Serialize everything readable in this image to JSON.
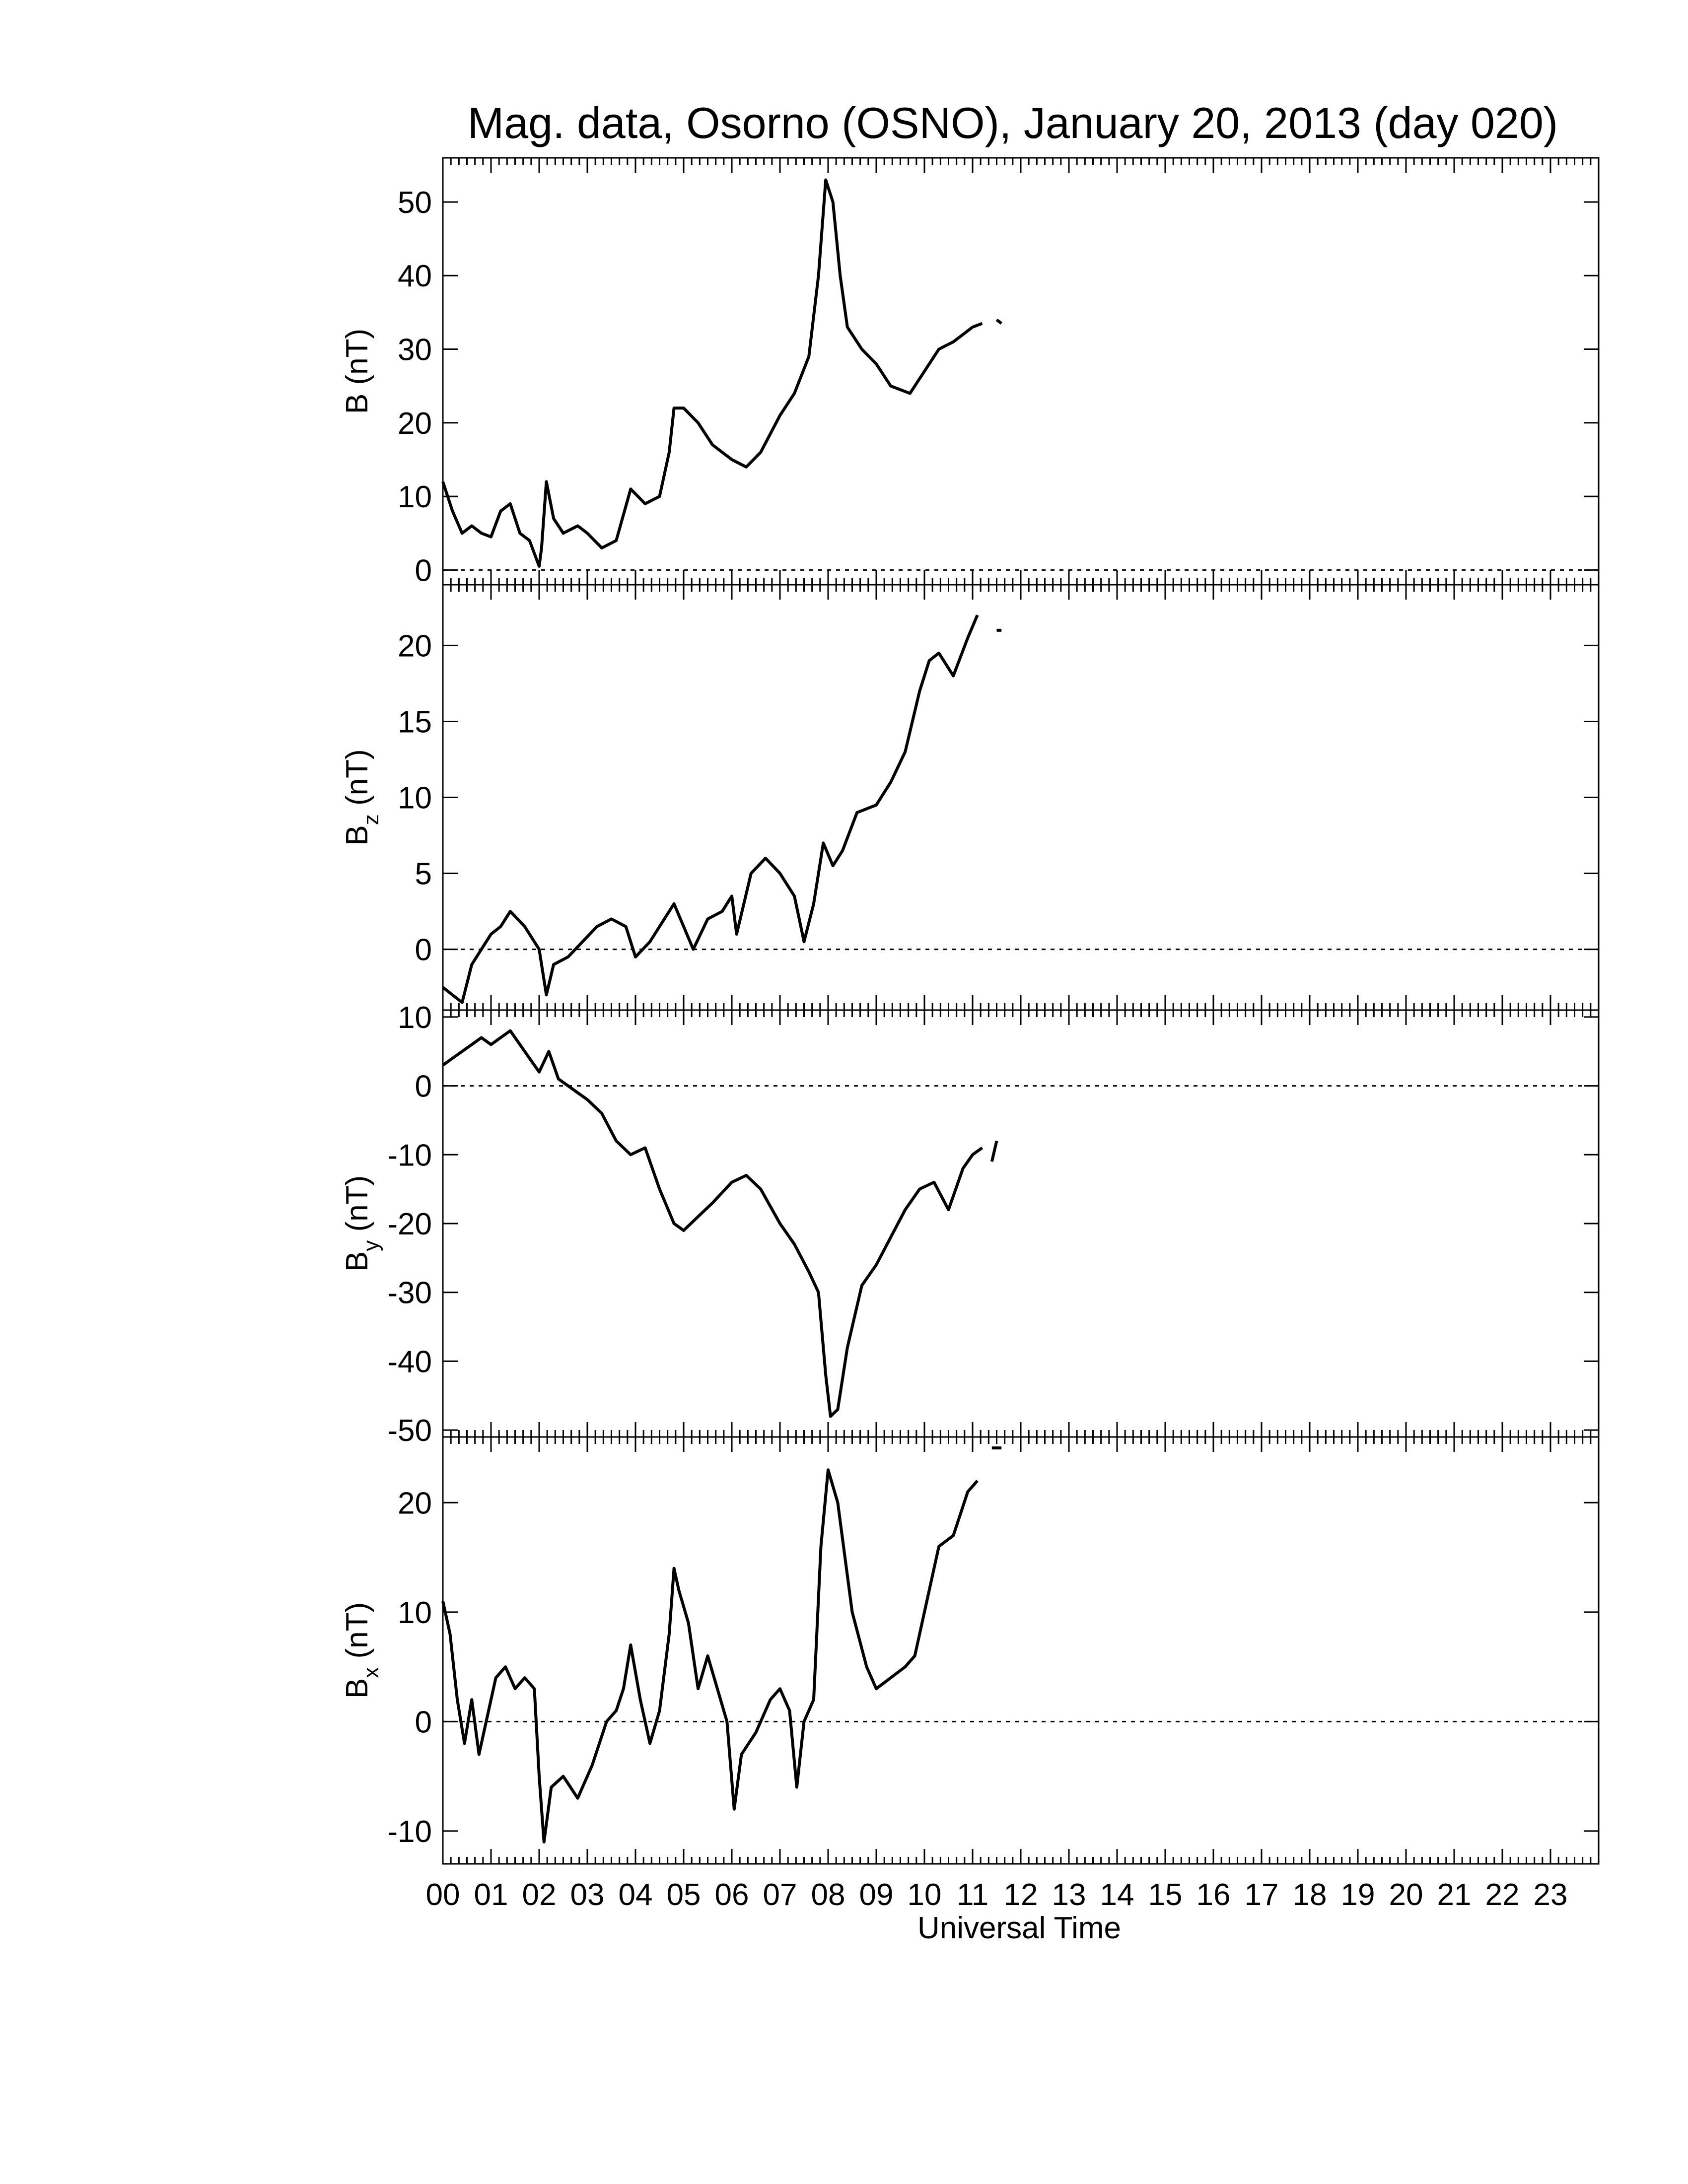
{
  "chart_data": {
    "type": "line",
    "title": "Mag. data, Osorno (OSNO), January 20, 2013 (day 020)",
    "xlabel": "Universal Time",
    "x_tick_labels": [
      "00",
      "01",
      "02",
      "03",
      "04",
      "05",
      "06",
      "07",
      "08",
      "09",
      "10",
      "11",
      "12",
      "13",
      "14",
      "15",
      "16",
      "17",
      "18",
      "19",
      "20",
      "21",
      "22",
      "23"
    ],
    "xlim": [
      0,
      24
    ],
    "panels": [
      {
        "id": "B",
        "ylabel_main": "B",
        "ylabel_sub": "",
        "ylabel_unit": " (nT)",
        "ylim": [
          -2,
          56
        ],
        "yticks": [
          0,
          10,
          20,
          30,
          40,
          50
        ],
        "ytick_labels": [
          "0",
          "10",
          "20",
          "30",
          "40",
          "50"
        ],
        "zero_line": true,
        "x": [
          0,
          0.2,
          0.4,
          0.6,
          0.8,
          1.0,
          1.2,
          1.4,
          1.6,
          1.8,
          2.0,
          2.05,
          2.15,
          2.3,
          2.5,
          2.8,
          3.0,
          3.3,
          3.6,
          3.9,
          4.2,
          4.5,
          4.7,
          4.8,
          5.0,
          5.3,
          5.6,
          6.0,
          6.3,
          6.6,
          7.0,
          7.3,
          7.6,
          7.8,
          7.95,
          8.1,
          8.25,
          8.4,
          8.7,
          9.0,
          9.3,
          9.7,
          10.0,
          10.3,
          10.6,
          11.0,
          11.2
        ],
        "y": [
          12,
          8,
          5,
          6,
          5,
          4.5,
          8,
          9,
          5,
          4,
          0.5,
          3,
          12,
          7,
          5,
          6,
          5,
          3,
          4,
          11,
          9,
          10,
          16,
          22,
          22,
          20,
          17,
          15,
          14,
          16,
          21,
          24,
          29,
          40,
          53,
          50,
          40,
          33,
          30,
          28,
          25,
          24,
          27,
          30,
          31,
          33,
          33.5
        ],
        "x_extra": [
          11.5,
          11.6
        ],
        "y_extra": [
          34,
          33.5
        ]
      },
      {
        "id": "Bz",
        "ylabel_main": "B",
        "ylabel_sub": "z",
        "ylabel_unit": " (nT)",
        "ylim": [
          -4,
          24
        ],
        "yticks": [
          0,
          5,
          10,
          15,
          20
        ],
        "ytick_labels": [
          "0",
          "5",
          "10",
          "15",
          "20"
        ],
        "zero_line": true,
        "x": [
          0,
          0.2,
          0.4,
          0.6,
          0.8,
          1.0,
          1.2,
          1.4,
          1.7,
          2.0,
          2.15,
          2.3,
          2.6,
          2.9,
          3.2,
          3.5,
          3.8,
          4.0,
          4.3,
          4.6,
          4.8,
          5.0,
          5.2,
          5.5,
          5.8,
          6.0,
          6.1,
          6.4,
          6.7,
          7.0,
          7.3,
          7.5,
          7.7,
          7.9,
          8.1,
          8.3,
          8.6,
          9.0,
          9.3,
          9.6,
          9.9,
          10.1,
          10.3,
          10.6,
          10.9,
          11.1
        ],
        "y": [
          -2.5,
          -3,
          -3.5,
          -1,
          0,
          1,
          1.5,
          2.5,
          1.5,
          0,
          -3,
          -1,
          -0.5,
          0.5,
          1.5,
          2,
          1.5,
          -0.5,
          0.5,
          2,
          3,
          1.5,
          0,
          2,
          2.5,
          3.5,
          1,
          5,
          6,
          5,
          3.5,
          0.5,
          3,
          7,
          5.5,
          6.5,
          9,
          9.5,
          11,
          13,
          17,
          19,
          19.5,
          18,
          20.5,
          22
        ],
        "x_extra": [
          11.5,
          11.6
        ],
        "y_extra": [
          21,
          21
        ]
      },
      {
        "id": "By",
        "ylabel_main": "B",
        "ylabel_sub": "y",
        "ylabel_unit": " (nT)",
        "ylim": [
          -51,
          11
        ],
        "yticks": [
          -50,
          -40,
          -30,
          -20,
          -10,
          0,
          10
        ],
        "ytick_labels": [
          "-50",
          "-40",
          "-30",
          "-20",
          "-10",
          "0",
          "10"
        ],
        "zero_line": true,
        "x": [
          0,
          0.2,
          0.4,
          0.6,
          0.8,
          1.0,
          1.2,
          1.4,
          1.6,
          1.8,
          2.0,
          2.2,
          2.4,
          2.6,
          2.8,
          3.0,
          3.3,
          3.6,
          3.9,
          4.2,
          4.5,
          4.8,
          5.0,
          5.3,
          5.6,
          6.0,
          6.3,
          6.6,
          7.0,
          7.3,
          7.6,
          7.8,
          7.95,
          8.05,
          8.2,
          8.4,
          8.7,
          9.0,
          9.3,
          9.6,
          9.9,
          10.2,
          10.5,
          10.8,
          11.0,
          11.2
        ],
        "y": [
          3,
          4,
          5,
          6,
          7,
          6,
          7,
          8,
          6,
          4,
          2,
          5,
          1,
          0,
          -1,
          -2,
          -4,
          -8,
          -10,
          -9,
          -15,
          -20,
          -21,
          -19,
          -17,
          -14,
          -13,
          -15,
          -20,
          -23,
          -27,
          -30,
          -42,
          -48,
          -47,
          -38,
          -29,
          -26,
          -22,
          -18,
          -15,
          -14,
          -18,
          -12,
          -10,
          -9
        ],
        "x_extra": [
          11.4,
          11.5
        ],
        "y_extra": [
          -11,
          -8
        ]
      },
      {
        "id": "Bx",
        "ylabel_main": "B",
        "ylabel_sub": "x",
        "ylabel_unit": " (nT)",
        "ylim": [
          -13,
          26
        ],
        "yticks": [
          -10,
          0,
          10,
          20
        ],
        "ytick_labels": [
          "-10",
          "0",
          "10",
          "20"
        ],
        "zero_line": true,
        "x": [
          0,
          0.15,
          0.3,
          0.45,
          0.6,
          0.75,
          0.9,
          1.1,
          1.3,
          1.5,
          1.7,
          1.9,
          2.0,
          2.1,
          2.25,
          2.5,
          2.8,
          3.1,
          3.4,
          3.6,
          3.75,
          3.9,
          4.1,
          4.3,
          4.5,
          4.7,
          4.8,
          4.9,
          5.1,
          5.3,
          5.5,
          5.7,
          5.9,
          6.05,
          6.2,
          6.5,
          6.8,
          7.0,
          7.2,
          7.35,
          7.5,
          7.7,
          7.85,
          8.0,
          8.2,
          8.5,
          8.8,
          9.0,
          9.3,
          9.6,
          9.8,
          10.0,
          10.3,
          10.6,
          10.9,
          11.1
        ],
        "y": [
          11,
          8,
          2,
          -2,
          2,
          -3,
          0,
          4,
          5,
          3,
          4,
          3,
          -5,
          -11,
          -6,
          -5,
          -7,
          -4,
          0,
          1,
          3,
          7,
          2,
          -2,
          1,
          8,
          14,
          12,
          9,
          3,
          6,
          3,
          0,
          -8,
          -3,
          -1,
          2,
          3,
          1,
          -6,
          0,
          2,
          16,
          23,
          20,
          10,
          5,
          3,
          4,
          5,
          6,
          10,
          16,
          17,
          21,
          22
        ],
        "x_extra": [
          11.4,
          11.6
        ],
        "y_extra": [
          25,
          25
        ]
      }
    ]
  }
}
